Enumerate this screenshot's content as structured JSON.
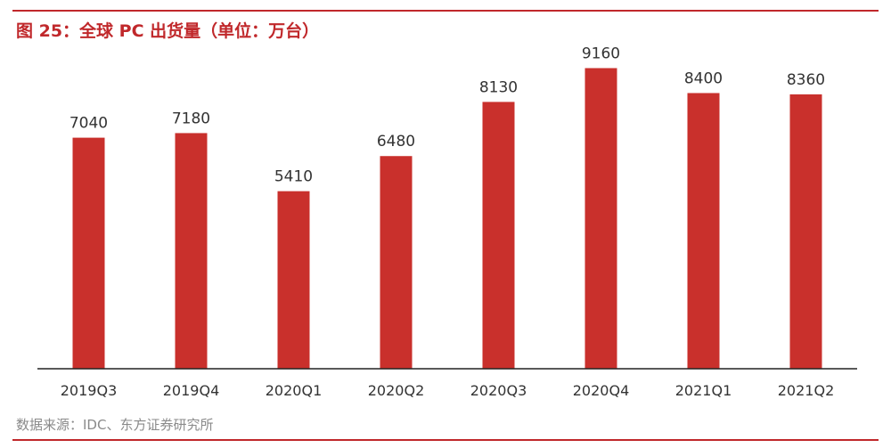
{
  "header": {
    "title": "图 25：全球 PC 出货量（单位：万台）"
  },
  "footer": {
    "source": "数据来源：IDC、东方证券研究所"
  },
  "colors": {
    "accent": "#c0282b",
    "bar": "#c9302c",
    "axis": "#222222",
    "text": "#333333",
    "source_text": "#8a8a8a"
  },
  "chart_data": {
    "type": "bar",
    "title": "图 25：全球 PC 出货量（单位：万台）",
    "categories": [
      "2019Q3",
      "2019Q4",
      "2020Q1",
      "2020Q2",
      "2020Q3",
      "2020Q4",
      "2021Q1",
      "2021Q2"
    ],
    "values": [
      7040,
      7180,
      5410,
      6480,
      8130,
      9160,
      8400,
      8360
    ],
    "xlabel": "",
    "ylabel": "",
    "ylim": [
      0,
      10150
    ],
    "grid": false,
    "legend": "none",
    "data_labels": true
  }
}
